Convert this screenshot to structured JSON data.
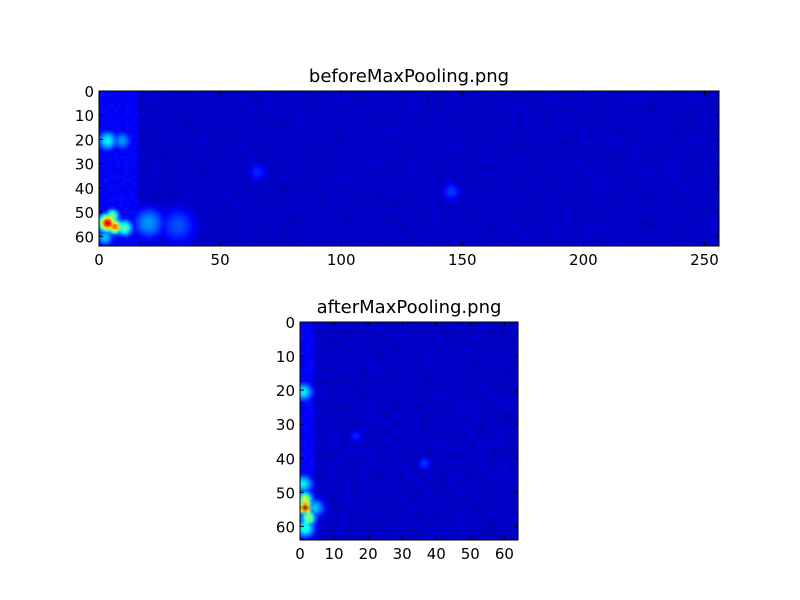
{
  "chart_data": [
    {
      "type": "heatmap",
      "title": "beforeMaxPooling.png",
      "colormap": "jet",
      "shape": [
        64,
        256
      ],
      "xlim": [
        0,
        256
      ],
      "ylim": [
        64,
        0
      ],
      "xticks": [
        0,
        50,
        100,
        150,
        200,
        250
      ],
      "yticks": [
        0,
        10,
        20,
        30,
        40,
        50,
        60
      ],
      "background_value": 0.05,
      "hotspots": [
        {
          "col": 3,
          "row": 54,
          "value": 0.9,
          "spread": 2.5
        },
        {
          "col": 6,
          "row": 55.5,
          "value": 0.8,
          "spread": 2
        },
        {
          "col": 5,
          "row": 51,
          "value": 0.5,
          "spread": 2
        },
        {
          "col": 10,
          "row": 56,
          "value": 0.45,
          "spread": 2.5
        },
        {
          "col": 2,
          "row": 60,
          "value": 0.3,
          "spread": 2.5
        },
        {
          "col": 3,
          "row": 20,
          "value": 0.35,
          "spread": 3
        },
        {
          "col": 9,
          "row": 20,
          "value": 0.25,
          "spread": 3
        },
        {
          "col": 20,
          "row": 54,
          "value": 0.25,
          "spread": 5
        },
        {
          "col": 32,
          "row": 55,
          "value": 0.18,
          "spread": 6
        },
        {
          "col": 145,
          "row": 41,
          "value": 0.16,
          "spread": 3
        },
        {
          "col": 65,
          "row": 33,
          "value": 0.14,
          "spread": 3
        }
      ]
    },
    {
      "type": "heatmap",
      "title": "afterMaxPooling.png",
      "colormap": "jet",
      "shape": [
        64,
        64
      ],
      "xlim": [
        0,
        64
      ],
      "ylim": [
        64,
        0
      ],
      "xticks": [
        0,
        10,
        20,
        30,
        40,
        50,
        60
      ],
      "yticks": [
        0,
        10,
        20,
        30,
        40,
        50,
        60
      ],
      "background_value": 0.05,
      "hotspots": [
        {
          "col": 1,
          "row": 54,
          "value": 0.95,
          "spread": 1.3
        },
        {
          "col": 1,
          "row": 51.5,
          "value": 0.6,
          "spread": 1.5
        },
        {
          "col": 2,
          "row": 57,
          "value": 0.55,
          "spread": 1.5
        },
        {
          "col": 1,
          "row": 60,
          "value": 0.4,
          "spread": 2
        },
        {
          "col": 0.5,
          "row": 47,
          "value": 0.35,
          "spread": 2
        },
        {
          "col": 4,
          "row": 54,
          "value": 0.3,
          "spread": 2
        },
        {
          "col": 0.5,
          "row": 20,
          "value": 0.35,
          "spread": 2
        },
        {
          "col": 36,
          "row": 41,
          "value": 0.16,
          "spread": 1.5
        },
        {
          "col": 16,
          "row": 33,
          "value": 0.14,
          "spread": 1.5
        }
      ]
    }
  ]
}
